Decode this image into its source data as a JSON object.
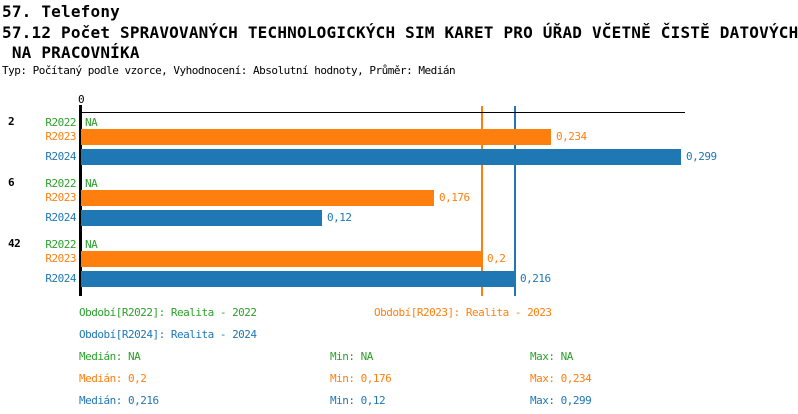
{
  "header": {
    "line1": "57. Telefony",
    "line2": "57.12 Počet SPRAVOVANÝCH TECHNOLOGICKÝCH SIM KARET PRO ÚŘAD VČETNĚ ČISTĚ DATOVÝCH",
    "line3": " NA PRACOVNÍKA",
    "meta": "Typ: Počítaný podle vzorce, Vyhodnocení: Absolutní hodnoty, Průměr: Medián"
  },
  "chart_data": {
    "type": "bar",
    "orientation": "horizontal",
    "title": "57.12 Počet SPRAVOVANÝCH TECHNOLOGICKÝCH SIM KARET PRO ÚŘAD VČETNĚ ČISTĚ DATOVÝCH NA PRACOVNÍKA",
    "x_axis": {
      "origin_tick_label": "0",
      "xlim": [
        0,
        0.301
      ],
      "grid": false
    },
    "series_colors": {
      "R2022": "#2CA02C",
      "R2023": "#FF7F0E",
      "R2024": "#1F77B4"
    },
    "groups": [
      {
        "label": "2",
        "rows": [
          {
            "series": "R2022",
            "value": null,
            "label": "NA"
          },
          {
            "series": "R2023",
            "value": 0.234,
            "label": "0,234"
          },
          {
            "series": "R2024",
            "value": 0.299,
            "label": "0,299"
          }
        ]
      },
      {
        "label": "6",
        "rows": [
          {
            "series": "R2022",
            "value": null,
            "label": "NA"
          },
          {
            "series": "R2023",
            "value": 0.176,
            "label": "0,176"
          },
          {
            "series": "R2024",
            "value": 0.12,
            "label": "0,12"
          }
        ]
      },
      {
        "label": "42",
        "rows": [
          {
            "series": "R2022",
            "value": null,
            "label": "NA"
          },
          {
            "series": "R2023",
            "value": 0.2,
            "label": "0,2"
          },
          {
            "series": "R2024",
            "value": 0.216,
            "label": "0,216"
          }
        ]
      }
    ],
    "median_lines": [
      {
        "series": "R2023",
        "value": 0.2
      },
      {
        "series": "R2024",
        "value": 0.216
      }
    ]
  },
  "legend": {
    "items": [
      {
        "series": "R2022",
        "label": "Období[R2022]: Realita - 2022"
      },
      {
        "series": "R2023",
        "label": "Období[R2023]: Realita - 2023"
      },
      {
        "series": "R2024",
        "label": "Období[R2024]: Realita - 2024"
      }
    ]
  },
  "stats": {
    "rows": [
      {
        "series": "R2022",
        "median": "Medián: NA",
        "min": "Min: NA",
        "max": "Max: NA"
      },
      {
        "series": "R2023",
        "median": "Medián: 0,2",
        "min": "Min: 0,176",
        "max": "Max: 0,234"
      },
      {
        "series": "R2024",
        "median": "Medián: 0,216",
        "min": "Min: 0,12",
        "max": "Max: 0,299"
      }
    ]
  }
}
